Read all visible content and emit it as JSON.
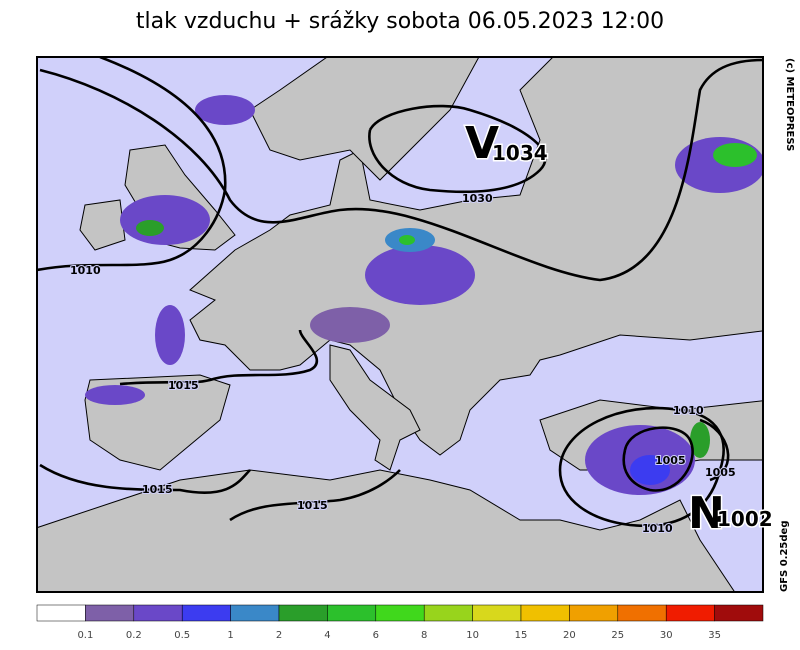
{
  "header": {
    "title": "tlak vzduchu + srážky  sobota 06.05.2023 12:00"
  },
  "map": {
    "pressure_centers": [
      {
        "letter": "V",
        "value": "1034"
      },
      {
        "letter": "N",
        "value": "1002"
      }
    ],
    "isobar_labels": [
      "1030",
      "1010",
      "1015",
      "1015",
      "1015",
      "1010",
      "1005",
      "1005",
      "1010"
    ]
  },
  "credits": {
    "copyright": "(c)  METEOPRESS",
    "model": "GFS  0.25deg"
  },
  "legend": {
    "colors": [
      "#ffffff",
      "#7e60a8",
      "#6a48c8",
      "#3c3cf0",
      "#3a88c8",
      "#2a9e2a",
      "#2cc02c",
      "#40d81c",
      "#98d41c",
      "#d8d81c",
      "#f0c000",
      "#f0a000",
      "#f07000",
      "#f01c00",
      "#a00c0c"
    ],
    "labels": [
      "0.1",
      "0.2",
      "0.5",
      "1",
      "2",
      "4",
      "6",
      "8",
      "10",
      "15",
      "20",
      "25",
      "30",
      "35"
    ]
  }
}
